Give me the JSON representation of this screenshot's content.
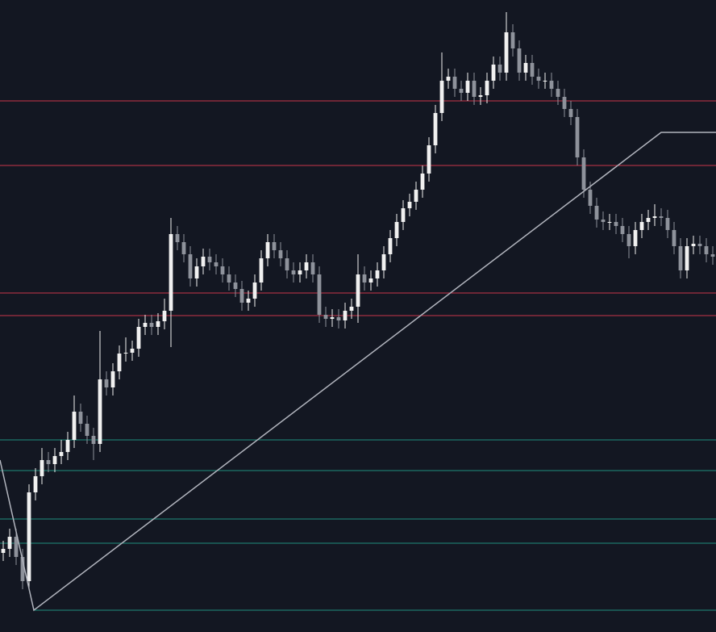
{
  "chart_data": {
    "type": "candlestick",
    "xlim": [
      -0.5,
      110.5
    ],
    "ylim": [
      0,
      78.3
    ],
    "background": "#131722",
    "up_color": "#f0f0f0",
    "down_color": "#8e929b",
    "open": [
      9.8,
      10.3,
      11.8,
      9.3,
      6.3,
      17.3,
      19.3,
      21.3,
      20.8,
      21.8,
      22.3,
      23.8,
      27.3,
      25.8,
      24.3,
      23.3,
      31.3,
      30.3,
      32.3,
      34.5,
      34.6,
      35.1,
      37.8,
      38.3,
      37.8,
      38.5,
      39.8,
      49.3,
      48.3,
      46.8,
      43.8,
      45.3,
      46.5,
      45.8,
      45.3,
      44.3,
      43.3,
      42.5,
      40.8,
      41.3,
      43.3,
      46.3,
      48.3,
      47.3,
      46.3,
      44.8,
      44.3,
      44.8,
      45.8,
      44.3,
      39.3,
      38.8,
      39.0,
      38.6,
      39.8,
      40.3,
      44.3,
      43.3,
      43.8,
      44.8,
      46.8,
      48.8,
      50.8,
      52.5,
      53.3,
      54.8,
      56.8,
      60.3,
      64.3,
      68.3,
      68.8,
      67.3,
      66.8,
      68.3,
      66.3,
      66.5,
      68.3,
      70.3,
      69.3,
      74.3,
      72.3,
      69.3,
      70.5,
      68.8,
      68.3,
      68.3,
      67.3,
      66.3,
      64.8,
      63.8,
      58.8,
      54.8,
      52.8,
      51.1,
      50.8,
      50.8,
      50.3,
      49.3,
      47.8,
      49.8,
      50.8,
      51.3,
      51.5,
      51.3,
      49.8,
      47.8,
      44.8,
      47.8,
      48.1,
      47.8,
      46.8
    ],
    "high": [
      11.3,
      12.8,
      12.8,
      10.3,
      18.3,
      20.3,
      22.8,
      22.3,
      22.8,
      23.8,
      24.8,
      29.3,
      28.3,
      26.8,
      25.3,
      37.3,
      32.3,
      33.3,
      35.5,
      36.5,
      36.1,
      38.8,
      39.3,
      39.3,
      39.5,
      41.3,
      51.3,
      50.3,
      49.3,
      47.8,
      46.3,
      47.5,
      47.5,
      46.8,
      46.3,
      45.3,
      44.3,
      43.5,
      42.3,
      44.3,
      47.3,
      49.3,
      49.3,
      48.3,
      47.3,
      45.8,
      45.8,
      46.8,
      46.8,
      45.3,
      40.3,
      40.0,
      40.0,
      40.8,
      41.3,
      46.8,
      45.3,
      44.8,
      45.8,
      47.8,
      49.8,
      51.8,
      53.5,
      54.3,
      55.8,
      57.8,
      61.3,
      65.3,
      71.8,
      69.8,
      69.8,
      68.3,
      69.3,
      69.3,
      67.5,
      69.3,
      71.3,
      71.3,
      76.8,
      75.3,
      73.3,
      71.5,
      71.5,
      69.8,
      69.3,
      69.3,
      68.3,
      67.3,
      65.8,
      64.8,
      59.8,
      55.8,
      53.8,
      52.1,
      51.8,
      51.8,
      51.3,
      50.3,
      50.8,
      51.8,
      52.3,
      53.0,
      52.5,
      52.3,
      50.8,
      48.8,
      48.8,
      49.1,
      49.1,
      48.8,
      47.8
    ],
    "low": [
      8.8,
      9.3,
      8.3,
      5.3,
      5.3,
      16.3,
      18.3,
      19.8,
      19.8,
      20.8,
      21.3,
      22.8,
      24.8,
      23.3,
      21.3,
      22.3,
      29.3,
      29.3,
      31.3,
      33.5,
      33.6,
      34.1,
      36.8,
      36.8,
      36.8,
      37.5,
      35.3,
      47.3,
      45.8,
      42.8,
      42.8,
      44.3,
      44.8,
      44.3,
      43.3,
      42.3,
      41.5,
      39.8,
      39.8,
      40.3,
      42.3,
      45.3,
      46.3,
      45.3,
      43.8,
      43.3,
      43.3,
      43.8,
      43.3,
      38.3,
      37.8,
      37.8,
      37.6,
      37.6,
      38.8,
      38.3,
      42.3,
      42.3,
      42.8,
      43.8,
      45.8,
      47.8,
      49.8,
      51.5,
      52.3,
      53.8,
      55.8,
      59.3,
      63.3,
      67.3,
      66.3,
      65.8,
      65.8,
      65.3,
      65.3,
      65.5,
      67.3,
      68.3,
      68.3,
      71.3,
      68.3,
      68.3,
      67.8,
      67.3,
      67.3,
      66.3,
      65.3,
      63.8,
      62.8,
      57.8,
      53.8,
      51.8,
      50.1,
      49.8,
      49.8,
      49.3,
      48.3,
      46.3,
      46.8,
      48.8,
      49.8,
      50.3,
      50.3,
      48.8,
      46.8,
      43.8,
      43.8,
      46.8,
      46.8,
      45.8,
      45.5
    ],
    "close": [
      10.3,
      11.8,
      9.3,
      6.3,
      17.3,
      19.3,
      21.3,
      20.8,
      21.8,
      22.3,
      23.8,
      27.3,
      25.8,
      24.3,
      23.3,
      31.3,
      30.3,
      32.3,
      34.5,
      34.6,
      35.1,
      37.8,
      38.3,
      37.8,
      38.5,
      39.8,
      49.3,
      48.3,
      46.8,
      43.8,
      45.3,
      46.5,
      45.8,
      45.3,
      44.3,
      43.3,
      42.5,
      40.8,
      41.3,
      43.3,
      46.3,
      48.3,
      47.3,
      46.3,
      44.8,
      44.3,
      44.8,
      45.8,
      44.3,
      39.3,
      38.8,
      39.0,
      38.6,
      39.8,
      40.3,
      44.3,
      43.3,
      43.8,
      44.8,
      46.8,
      48.8,
      50.8,
      52.5,
      53.3,
      54.8,
      56.8,
      60.3,
      64.3,
      68.3,
      68.8,
      67.3,
      66.8,
      68.3,
      66.3,
      66.5,
      68.3,
      70.3,
      69.3,
      74.3,
      72.3,
      69.3,
      70.5,
      68.8,
      68.3,
      68.3,
      67.3,
      66.3,
      64.8,
      63.8,
      58.8,
      54.8,
      52.8,
      51.1,
      50.8,
      50.8,
      50.3,
      49.3,
      47.8,
      49.8,
      50.8,
      51.3,
      51.5,
      51.3,
      49.8,
      47.8,
      44.8,
      47.8,
      48.1,
      47.8,
      46.8,
      46.5
    ],
    "levels": [
      {
        "value": 65.8,
        "color": "#c8364b"
      },
      {
        "value": 57.8,
        "color": "#c8364b"
      },
      {
        "value": 42.0,
        "color": "#c8364b"
      },
      {
        "value": 39.2,
        "color": "#c8364b"
      },
      {
        "value": 23.8,
        "color": "#1f8f7d"
      },
      {
        "value": 20.0,
        "color": "#1f8f7d"
      },
      {
        "value": 14.0,
        "color": "#1f8f7d"
      },
      {
        "value": 11.0,
        "color": "#1f8f7d"
      },
      {
        "value": 2.7,
        "color": "#1f8f7d",
        "x_from": 4.75
      }
    ],
    "trendline": {
      "x": [
        -0.5,
        4.75,
        102,
        110.5
      ],
      "y": [
        21.3,
        2.7,
        61.9,
        61.9
      ],
      "color": "#b2b5be"
    }
  }
}
